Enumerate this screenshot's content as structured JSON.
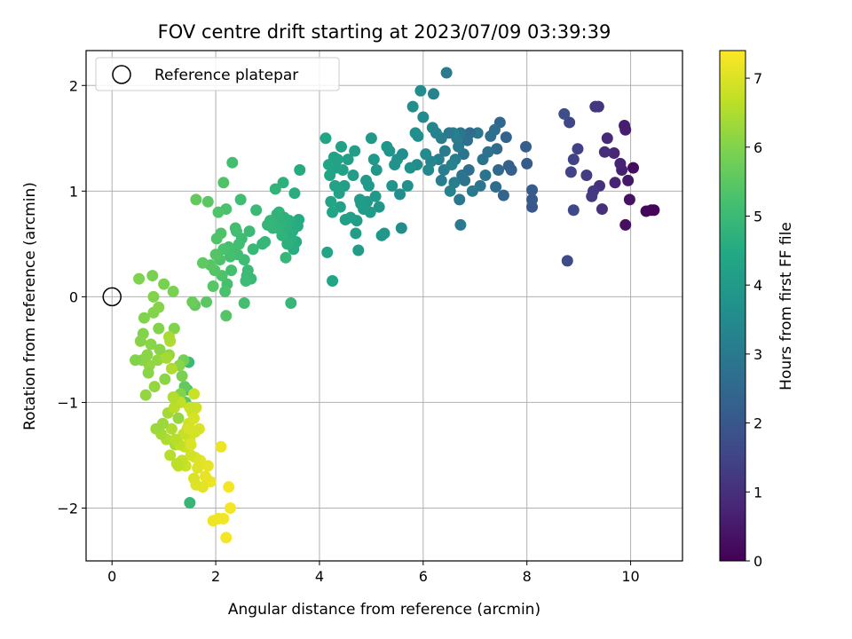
{
  "chart_data": {
    "type": "scatter",
    "title": "FOV centre drift starting at 2023/07/09 03:39:39",
    "xlabel": "Angular distance from reference (arcmin)",
    "ylabel": "Rotation from reference (arcmin)",
    "xlim": [
      -0.5,
      11.0
    ],
    "ylim": [
      -2.5,
      2.33
    ],
    "xticks": [
      0,
      2,
      4,
      6,
      8,
      10
    ],
    "yticks": [
      -2,
      -1,
      0,
      1,
      2
    ],
    "grid": true,
    "legend": {
      "position": "top-left",
      "entries": [
        "Reference platepar"
      ]
    },
    "reference_point": {
      "x": 0,
      "y": 0
    },
    "colorbar": {
      "label": "Hours from first FF file",
      "colormap": "viridis",
      "range": [
        0,
        7.4
      ],
      "ticks": [
        0,
        1,
        2,
        3,
        4,
        5,
        6,
        7
      ]
    },
    "points": [
      [
        10.45,
        0.82,
        0.05
      ],
      [
        10.4,
        0.82,
        0.08
      ],
      [
        10.3,
        0.81,
        0.12
      ],
      [
        10.05,
        1.22,
        0.25
      ],
      [
        9.9,
        0.68,
        0.3
      ],
      [
        9.98,
        0.92,
        0.35
      ],
      [
        9.95,
        1.1,
        0.45
      ],
      [
        9.9,
        1.58,
        0.55
      ],
      [
        9.88,
        1.62,
        0.6
      ],
      [
        9.83,
        1.2,
        0.65
      ],
      [
        9.8,
        1.26,
        0.7
      ],
      [
        9.7,
        1.08,
        0.75
      ],
      [
        9.68,
        1.36,
        0.8
      ],
      [
        9.55,
        1.5,
        0.85
      ],
      [
        9.5,
        1.37,
        0.95
      ],
      [
        9.45,
        0.83,
        1.0
      ],
      [
        9.4,
        1.05,
        1.05
      ],
      [
        9.38,
        1.8,
        1.1
      ],
      [
        9.32,
        1.8,
        1.15
      ],
      [
        9.28,
        1.0,
        1.2
      ],
      [
        9.25,
        0.95,
        1.25
      ],
      [
        9.15,
        1.15,
        1.3
      ],
      [
        8.98,
        1.4,
        1.4
      ],
      [
        8.9,
        1.3,
        1.45
      ],
      [
        8.85,
        1.18,
        1.5
      ],
      [
        8.82,
        1.65,
        1.55
      ],
      [
        8.9,
        0.82,
        1.6
      ],
      [
        8.78,
        0.34,
        1.7
      ],
      [
        8.72,
        1.73,
        1.75
      ],
      [
        8.1,
        0.85,
        2.0
      ],
      [
        8.1,
        0.92,
        2.05
      ],
      [
        8.1,
        1.01,
        2.1
      ],
      [
        8.0,
        1.26,
        2.15
      ],
      [
        7.98,
        1.42,
        2.2
      ],
      [
        7.7,
        1.2,
        2.25
      ],
      [
        7.65,
        1.24,
        2.3
      ],
      [
        7.6,
        1.51,
        2.35
      ],
      [
        7.55,
        0.96,
        2.4
      ],
      [
        7.48,
        1.65,
        2.45
      ],
      [
        7.45,
        1.2,
        2.5
      ],
      [
        7.42,
        1.4,
        2.55
      ],
      [
        7.4,
        1.04,
        2.6
      ],
      [
        7.38,
        1.58,
        2.65
      ],
      [
        7.3,
        1.52,
        2.7
      ],
      [
        7.25,
        1.37,
        2.75
      ],
      [
        7.2,
        1.15,
        2.8
      ],
      [
        7.15,
        1.3,
        2.85
      ],
      [
        7.1,
        1.05,
        2.9
      ],
      [
        7.05,
        1.55,
        2.95
      ],
      [
        6.95,
        1.0,
        3.0
      ],
      [
        6.9,
        1.55,
        2.6
      ],
      [
        6.88,
        1.2,
        2.65
      ],
      [
        6.85,
        1.48,
        2.7
      ],
      [
        6.8,
        1.1,
        2.75
      ],
      [
        6.78,
        1.35,
        2.8
      ],
      [
        6.75,
        1.15,
        2.85
      ],
      [
        6.72,
        1.55,
        2.9
      ],
      [
        6.7,
        0.92,
        2.95
      ],
      [
        6.68,
        1.42,
        3.0
      ],
      [
        6.65,
        1.5,
        3.05
      ],
      [
        6.62,
        1.3,
        3.1
      ],
      [
        6.6,
        1.08,
        3.15
      ],
      [
        6.58,
        1.55,
        3.2
      ],
      [
        6.55,
        1.25,
        3.25
      ],
      [
        6.52,
        1.0,
        3.3
      ],
      [
        6.5,
        1.55,
        3.0
      ],
      [
        6.45,
        2.12,
        3.0
      ],
      [
        6.42,
        1.38,
        3.05
      ],
      [
        6.4,
        1.2,
        3.1
      ],
      [
        6.35,
        1.5,
        3.15
      ],
      [
        6.3,
        1.3,
        3.2
      ],
      [
        6.25,
        1.55,
        3.25
      ],
      [
        6.2,
        1.92,
        3.3
      ],
      [
        6.18,
        1.6,
        3.35
      ],
      [
        6.15,
        1.28,
        3.4
      ],
      [
        6.1,
        1.2,
        3.45
      ],
      [
        6.05,
        1.35,
        3.5
      ],
      [
        6.0,
        1.7,
        3.5
      ],
      [
        5.95,
        1.95,
        3.55
      ],
      [
        5.9,
        1.52,
        3.6
      ],
      [
        5.88,
        1.25,
        3.6
      ],
      [
        5.85,
        1.55,
        3.65
      ],
      [
        5.8,
        1.8,
        3.65
      ],
      [
        5.75,
        1.22,
        3.7
      ],
      [
        5.7,
        1.05,
        3.7
      ],
      [
        6.72,
        0.68,
        3.0
      ],
      [
        6.35,
        1.1,
        3.1
      ],
      [
        5.6,
        1.35,
        3.55
      ],
      [
        5.58,
        0.65,
        3.6
      ],
      [
        5.55,
        0.97,
        3.65
      ],
      [
        5.5,
        1.3,
        3.7
      ],
      [
        5.45,
        1.25,
        3.75
      ],
      [
        5.4,
        1.05,
        3.8
      ],
      [
        5.35,
        1.38,
        3.8
      ],
      [
        5.3,
        1.42,
        3.85
      ],
      [
        5.25,
        0.6,
        3.85
      ],
      [
        5.2,
        0.58,
        3.9
      ],
      [
        5.15,
        0.85,
        3.9
      ],
      [
        5.1,
        1.2,
        3.9
      ],
      [
        5.08,
        0.95,
        3.95
      ],
      [
        5.05,
        1.3,
        3.95
      ],
      [
        5.0,
        1.5,
        3.95
      ],
      [
        4.98,
        0.8,
        4.0
      ],
      [
        4.95,
        1.05,
        4.0
      ],
      [
        4.92,
        0.9,
        4.0
      ],
      [
        4.9,
        1.1,
        4.0
      ],
      [
        4.85,
        0.83,
        4.05
      ],
      [
        4.8,
        0.88,
        4.05
      ],
      [
        4.78,
        0.92,
        4.05
      ],
      [
        4.75,
        0.44,
        4.05
      ],
      [
        4.72,
        0.72,
        4.1
      ],
      [
        4.7,
        0.6,
        4.1
      ],
      [
        4.68,
        1.38,
        4.1
      ],
      [
        4.65,
        1.15,
        4.1
      ],
      [
        4.6,
        0.75,
        4.15
      ],
      [
        4.55,
        1.3,
        4.15
      ],
      [
        4.5,
        0.73,
        4.15
      ],
      [
        4.48,
        1.05,
        4.15
      ],
      [
        4.45,
        1.2,
        4.2
      ],
      [
        4.42,
        1.42,
        4.2
      ],
      [
        4.4,
        0.85,
        4.2
      ],
      [
        4.38,
        0.98,
        4.2
      ],
      [
        4.35,
        1.3,
        4.25
      ],
      [
        4.32,
        1.22,
        4.25
      ],
      [
        4.3,
        1.05,
        4.25
      ],
      [
        4.28,
        1.32,
        4.25
      ],
      [
        4.25,
        0.8,
        4.3
      ],
      [
        4.22,
        0.9,
        4.3
      ],
      [
        4.2,
        1.15,
        4.3
      ],
      [
        4.18,
        1.25,
        4.3
      ],
      [
        4.15,
        0.42,
        4.35
      ],
      [
        4.12,
        1.5,
        4.35
      ],
      [
        4.25,
        0.15,
        4.35
      ],
      [
        3.62,
        1.2,
        4.5
      ],
      [
        3.6,
        0.73,
        4.5
      ],
      [
        3.58,
        0.67,
        4.55
      ],
      [
        3.55,
        0.52,
        4.55
      ],
      [
        3.52,
        0.98,
        4.6
      ],
      [
        3.5,
        0.45,
        4.6
      ],
      [
        3.48,
        0.62,
        4.6
      ],
      [
        3.45,
        0.55,
        4.65
      ],
      [
        3.42,
        0.72,
        4.65
      ],
      [
        3.4,
        0.6,
        4.65
      ],
      [
        3.38,
        0.5,
        4.7
      ],
      [
        3.35,
        0.68,
        4.7
      ],
      [
        3.32,
        0.75,
        4.7
      ],
      [
        3.3,
        1.08,
        4.7
      ],
      [
        3.28,
        0.58,
        4.75
      ],
      [
        3.25,
        0.7,
        4.75
      ],
      [
        3.22,
        0.8,
        4.75
      ],
      [
        3.2,
        0.65,
        4.8
      ],
      [
        3.18,
        0.78,
        4.8
      ],
      [
        3.15,
        1.02,
        4.8
      ],
      [
        3.1,
        0.65,
        4.85
      ],
      [
        3.05,
        0.72,
        4.85
      ],
      [
        3.0,
        0.68,
        4.85
      ],
      [
        2.95,
        0.52,
        4.9
      ],
      [
        2.9,
        0.5,
        4.9
      ],
      [
        3.45,
        -0.06,
        4.9
      ],
      [
        3.35,
        0.37,
        4.9
      ],
      [
        2.78,
        0.82,
        4.95
      ],
      [
        2.72,
        0.45,
        4.95
      ],
      [
        2.68,
        0.17,
        5.0
      ],
      [
        2.65,
        0.62,
        5.0
      ],
      [
        2.62,
        0.25,
        5.0
      ],
      [
        2.6,
        0.2,
        5.0
      ],
      [
        2.58,
        0.15,
        5.05
      ],
      [
        2.55,
        0.35,
        5.05
      ],
      [
        2.5,
        0.55,
        5.05
      ],
      [
        2.48,
        0.92,
        5.1
      ],
      [
        2.45,
        0.5,
        5.1
      ],
      [
        2.42,
        0.4,
        5.1
      ],
      [
        2.4,
        0.62,
        5.1
      ],
      [
        2.38,
        0.65,
        5.15
      ],
      [
        2.35,
        0.45,
        5.15
      ],
      [
        2.32,
        1.27,
        5.15
      ],
      [
        2.3,
        0.25,
        5.2
      ],
      [
        2.28,
        0.38,
        5.2
      ],
      [
        2.25,
        0.47,
        5.2
      ],
      [
        2.22,
        0.12,
        5.2
      ],
      [
        2.2,
        0.83,
        5.25
      ],
      [
        2.18,
        0.05,
        5.25
      ],
      [
        2.15,
        0.45,
        5.25
      ],
      [
        2.12,
        0.2,
        5.3
      ],
      [
        2.1,
        0.6,
        5.3
      ],
      [
        2.08,
        0.35,
        5.3
      ],
      [
        2.05,
        0.8,
        5.35
      ],
      [
        2.02,
        0.55,
        5.35
      ],
      [
        2.15,
        1.08,
        5.35
      ],
      [
        2.2,
        -0.18,
        5.4
      ],
      [
        2.0,
        0.4,
        5.4
      ],
      [
        1.98,
        0.25,
        5.4
      ],
      [
        1.95,
        0.1,
        5.45
      ],
      [
        1.9,
        0.3,
        5.45
      ],
      [
        1.85,
        0.9,
        5.5
      ],
      [
        1.82,
        -0.05,
        5.5
      ],
      [
        1.75,
        0.32,
        5.55
      ],
      [
        1.62,
        0.92,
        5.6
      ],
      [
        1.6,
        -0.08,
        5.6
      ],
      [
        2.55,
        -0.06,
        5.15
      ],
      [
        1.55,
        -0.05,
        5.7
      ],
      [
        1.5,
        -1.95,
        4.9
      ],
      [
        1.48,
        -0.62,
        5.0
      ],
      [
        1.45,
        -0.88,
        5.2
      ],
      [
        1.42,
        -1.0,
        5.5
      ],
      [
        1.4,
        -0.85,
        5.6
      ],
      [
        1.38,
        -0.6,
        5.8
      ],
      [
        1.35,
        -0.75,
        5.9
      ],
      [
        1.32,
        -0.92,
        6.0
      ],
      [
        1.3,
        -0.65,
        6.1
      ],
      [
        1.28,
        -1.15,
        6.2
      ],
      [
        1.25,
        -0.98,
        6.3
      ],
      [
        1.22,
        -1.4,
        6.4
      ],
      [
        1.2,
        -0.3,
        6.0
      ],
      [
        1.18,
        0.05,
        5.9
      ],
      [
        1.15,
        -1.25,
        6.5
      ],
      [
        1.12,
        -1.5,
        6.6
      ],
      [
        1.1,
        -0.55,
        6.2
      ],
      [
        1.08,
        -1.1,
        6.4
      ],
      [
        1.05,
        -1.35,
        6.5
      ],
      [
        1.02,
        -0.78,
        6.1
      ],
      [
        1.0,
        0.12,
        5.9
      ],
      [
        0.98,
        -1.2,
        6.3
      ],
      [
        0.95,
        -1.3,
        6.4
      ],
      [
        0.92,
        -0.5,
        6.1
      ],
      [
        0.9,
        -0.3,
        6.0
      ],
      [
        0.88,
        -0.6,
        6.2
      ],
      [
        0.85,
        -1.25,
        6.3
      ],
      [
        0.82,
        -0.85,
        6.2
      ],
      [
        0.8,
        -0.15,
        6.0
      ],
      [
        0.78,
        0.2,
        5.9
      ],
      [
        0.75,
        -0.45,
        6.1
      ],
      [
        0.72,
        -0.65,
        6.2
      ],
      [
        0.7,
        -0.72,
        6.1
      ],
      [
        0.68,
        -0.55,
        6.1
      ],
      [
        0.65,
        -0.93,
        6.2
      ],
      [
        0.62,
        -0.2,
        6.0
      ],
      [
        0.6,
        -0.35,
        6.0
      ],
      [
        0.58,
        -0.6,
        6.1
      ],
      [
        0.55,
        -0.42,
        6.05
      ],
      [
        0.52,
        0.17,
        5.95
      ],
      [
        0.45,
        -0.6,
        6.0
      ],
      [
        0.8,
        0.0,
        6.0
      ],
      [
        0.9,
        -0.1,
        6.05
      ],
      [
        2.2,
        -2.28,
        7.3
      ],
      [
        2.15,
        -2.1,
        7.3
      ],
      [
        2.25,
        -1.8,
        7.3
      ],
      [
        2.28,
        -2.0,
        7.3
      ],
      [
        2.1,
        -1.42,
        7.2
      ],
      [
        2.05,
        -2.1,
        7.25
      ],
      [
        1.95,
        -2.12,
        7.25
      ],
      [
        1.9,
        -1.75,
        7.2
      ],
      [
        1.85,
        -1.6,
        7.15
      ],
      [
        1.8,
        -1.7,
        7.15
      ],
      [
        1.75,
        -1.8,
        7.1
      ],
      [
        1.7,
        -1.55,
        7.1
      ],
      [
        1.68,
        -1.25,
        7.0
      ],
      [
        1.65,
        -1.62,
        7.05
      ],
      [
        1.62,
        -1.78,
        7.05
      ],
      [
        1.6,
        -1.52,
        7.0
      ],
      [
        1.58,
        -1.72,
        7.0
      ],
      [
        1.55,
        -1.1,
        6.9
      ],
      [
        1.52,
        -1.5,
        6.9
      ],
      [
        1.5,
        -1.35,
        6.9
      ],
      [
        1.48,
        -1.2,
        6.85
      ],
      [
        1.45,
        -1.25,
        6.85
      ],
      [
        1.42,
        -1.6,
        6.8
      ],
      [
        1.4,
        -1.42,
        6.8
      ],
      [
        1.38,
        -1.3,
        6.75
      ],
      [
        1.35,
        -1.55,
        6.75
      ],
      [
        1.32,
        -1.0,
        6.7
      ],
      [
        1.3,
        -1.4,
        6.7
      ],
      [
        1.28,
        -1.6,
        6.7
      ],
      [
        1.25,
        -1.58,
        6.65
      ],
      [
        1.22,
        -1.35,
        6.6
      ],
      [
        1.2,
        -1.05,
        6.6
      ],
      [
        1.18,
        -0.95,
        6.55
      ],
      [
        1.15,
        -0.68,
        6.5
      ],
      [
        1.12,
        -0.42,
        6.5
      ],
      [
        1.1,
        -0.38,
        6.45
      ],
      [
        1.05,
        -0.58,
        6.4
      ],
      [
        1.58,
        -0.92,
        6.8
      ],
      [
        1.62,
        -1.05,
        6.85
      ],
      [
        1.6,
        -1.28,
        6.9
      ],
      [
        1.58,
        -1.15,
        6.95
      ],
      [
        1.5,
        -1.05,
        6.8
      ],
      [
        1.48,
        -1.25,
        6.95
      ],
      [
        1.52,
        -1.4,
        7.0
      ]
    ]
  }
}
